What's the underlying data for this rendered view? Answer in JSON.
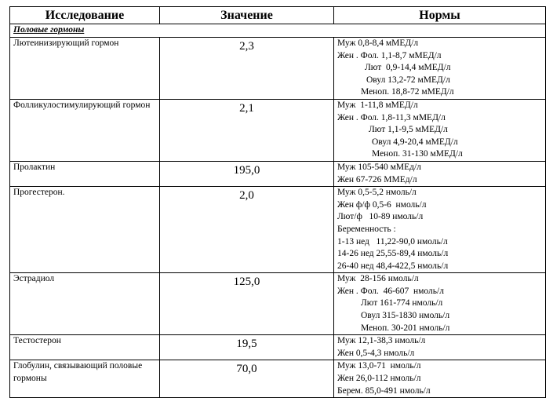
{
  "table": {
    "header": [
      "Исследование",
      "Значение",
      "Нормы"
    ],
    "section": "Половые гормоны",
    "rows": [
      {
        "name": "Лютеинизирующий гормон",
        "value": "2,3",
        "norms": [
          "Муж 0,8-8,4 мМЕД/л",
          "Жен . Фол. 1,1-8,7 мМЕД/л",
          "Лют  0,9-14,4 мМЕД/л",
          "Овул 13,2-72 мМЕД/л",
          "Меноп. 18,8-72 мМЕД/л"
        ]
      },
      {
        "name": "Фолликулостимулирующий гормон",
        "value": "2,1",
        "norms": [
          "Муж  1-11,8 мМЕД/л",
          "Жен . Фол. 1,8-11,3 мМЕД/л",
          "Лют 1,1-9,5 мМЕД/л",
          "Овул 4,9-20,4 мМЕД/л",
          "Меноп. 31-130 мМЕД/л"
        ]
      },
      {
        "name": "Пролактин",
        "value": "195,0",
        "norms": [
          "Муж 105-540 мМЕд/л",
          "Жен 67-726 ММЕд/л"
        ]
      },
      {
        "name": "Прогестерон.",
        "value": "2,0",
        "norms": [
          "Муж 0,5-5,2 нмоль/л",
          "Жен ф/ф 0,5-6  нмоль/л",
          "Лют/ф   10-89 нмоль/л",
          "Беременность :",
          "1-13 нед   11,22-90,0 нмоль/л",
          "14-26 нед 25,55-89,4 нмоль/л",
          "26-40 нед 48,4-422,5 нмоль/л"
        ]
      },
      {
        "name": "Эстрадиол",
        "value": "125,0",
        "norms": [
          "Муж  28-156 нмоль/л",
          "Жен . Фол.  46-607  нмоль/л",
          "Лют 161-774 нмоль/л",
          "Овул 315-1830 нмоль/л",
          "Меноп. 30-201 нмоль/л"
        ]
      },
      {
        "name": "Тестостерон",
        "value": "19,5",
        "norms": [
          "Муж 12,1-38,3 нмоль/л",
          "Жен 0,5-4,3 нмоль/л"
        ]
      },
      {
        "name": "Глобулин, связывающий половые гормоны",
        "value": "70,0",
        "norms": [
          "Муж 13,0-71  нмоль/л",
          "Жен 26,0-112 нмоль/л",
          "Берем. 85,0-491 нмоль/л"
        ]
      }
    ]
  }
}
